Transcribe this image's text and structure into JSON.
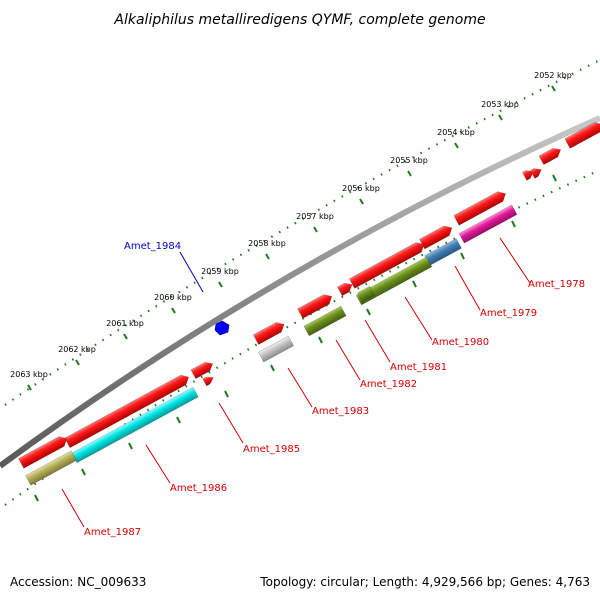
{
  "title": "Alkaliphilus metalliredigens QYMF, complete genome",
  "footer": {
    "accession": "Accession: NC_009633",
    "summary": "Topology: circular; Length: 4,929,566 bp; Genes: 4,763"
  },
  "colors": {
    "backbone": "#8a8a8a",
    "ticks": "#1f7a1f",
    "label_red": "#d40000",
    "label_blue": "#0000c8"
  },
  "ticks": [
    "2052 kbp",
    "2053 kbp",
    "2054 kbp",
    "2055 kbp",
    "2056 kbp",
    "2057 kbp",
    "2058 kbp",
    "2059 kbp",
    "2060 kbp",
    "2061 kbp",
    "2062 kbp",
    "2063 kbp"
  ],
  "labeled_genes": [
    {
      "name": "Amet_1978",
      "color": "#e0199a",
      "label_color": "#d40000"
    },
    {
      "name": "Amet_1979",
      "color": "#3f7fb5",
      "label_color": "#d40000"
    },
    {
      "name": "Amet_1980",
      "color": "#6b8f1f",
      "label_color": "#d40000"
    },
    {
      "name": "Amet_1981",
      "color": "#6b8f1f",
      "label_color": "#d40000"
    },
    {
      "name": "Amet_1982",
      "color": "#6b8f1f",
      "label_color": "#d40000"
    },
    {
      "name": "Amet_1983",
      "color": "#bdbdbd",
      "label_color": "#d40000"
    },
    {
      "name": "Amet_1984",
      "color": "#0000ff",
      "label_color": "#0000c8"
    },
    {
      "name": "Amet_1985",
      "color": "#00e5e5",
      "label_color": "#d40000"
    },
    {
      "name": "Amet_1986",
      "color": "#00e5e5",
      "label_color": "#d40000"
    },
    {
      "name": "Amet_1987",
      "color": "#b5b05a",
      "label_color": "#d40000"
    }
  ]
}
